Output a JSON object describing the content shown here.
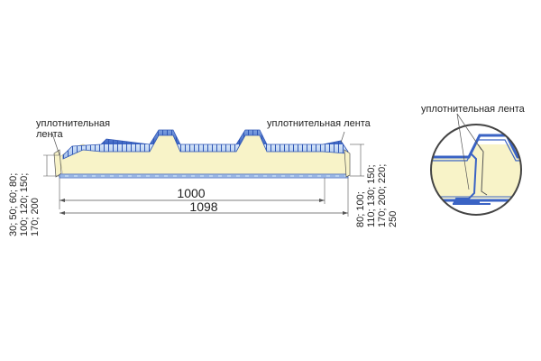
{
  "labels": {
    "seal_left_line1": "уплотнительная",
    "seal_left_line2": "лента",
    "seal_right": "уплотнительная лента",
    "seal_detail": "уплотнительная лента"
  },
  "dimensions": {
    "inner_width": "1000",
    "outer_width": "1098",
    "thickness_left_1": "30; 50; 60; 80;",
    "thickness_left_2": "100; 120; 150;",
    "thickness_left_3": "170; 200",
    "thickness_right_1": "80; 100;",
    "thickness_right_2": "110; 130; 150;",
    "thickness_right_3": "170; 200; 220;",
    "thickness_right_4": "250"
  },
  "colors": {
    "steel_blue": "#3a63c4",
    "steel_light": "#b9d2ef",
    "foam": "#f8f3c8",
    "line": "#555555"
  }
}
